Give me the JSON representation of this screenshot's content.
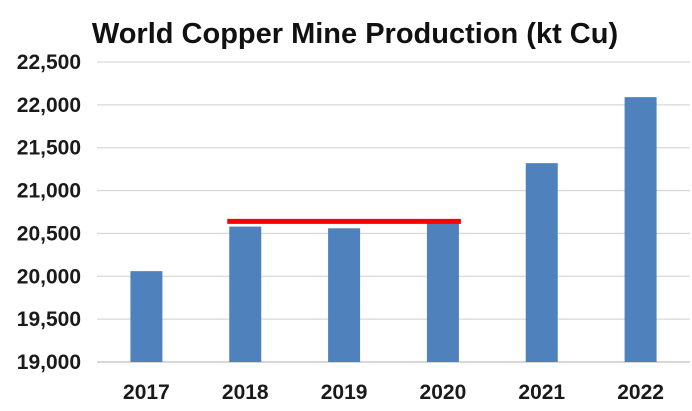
{
  "chart_data": {
    "type": "bar",
    "title": "World Copper Mine Production (kt Cu)",
    "xlabel": "",
    "ylabel": "",
    "categories": [
      "2017",
      "2018",
      "2019",
      "2020",
      "2021",
      "2022"
    ],
    "values": [
      20060,
      20580,
      20560,
      20620,
      21320,
      22090
    ],
    "ylim": [
      19000,
      22500
    ],
    "y_ticks": [
      19000,
      19500,
      20000,
      20500,
      21000,
      21500,
      22000,
      22500
    ],
    "y_tick_labels": [
      "19,000",
      "19,500",
      "20,000",
      "20,500",
      "21,000",
      "21,500",
      "22,000",
      "22,500"
    ],
    "grid": true,
    "legend": "none",
    "reference_line": {
      "from": "2018",
      "to": "2020",
      "value": 20640
    }
  },
  "colors": {
    "bar": "#4f81bd",
    "reference_line": "#ff0000",
    "grid": "#d9d9d9",
    "text": "#1a1a1a"
  }
}
